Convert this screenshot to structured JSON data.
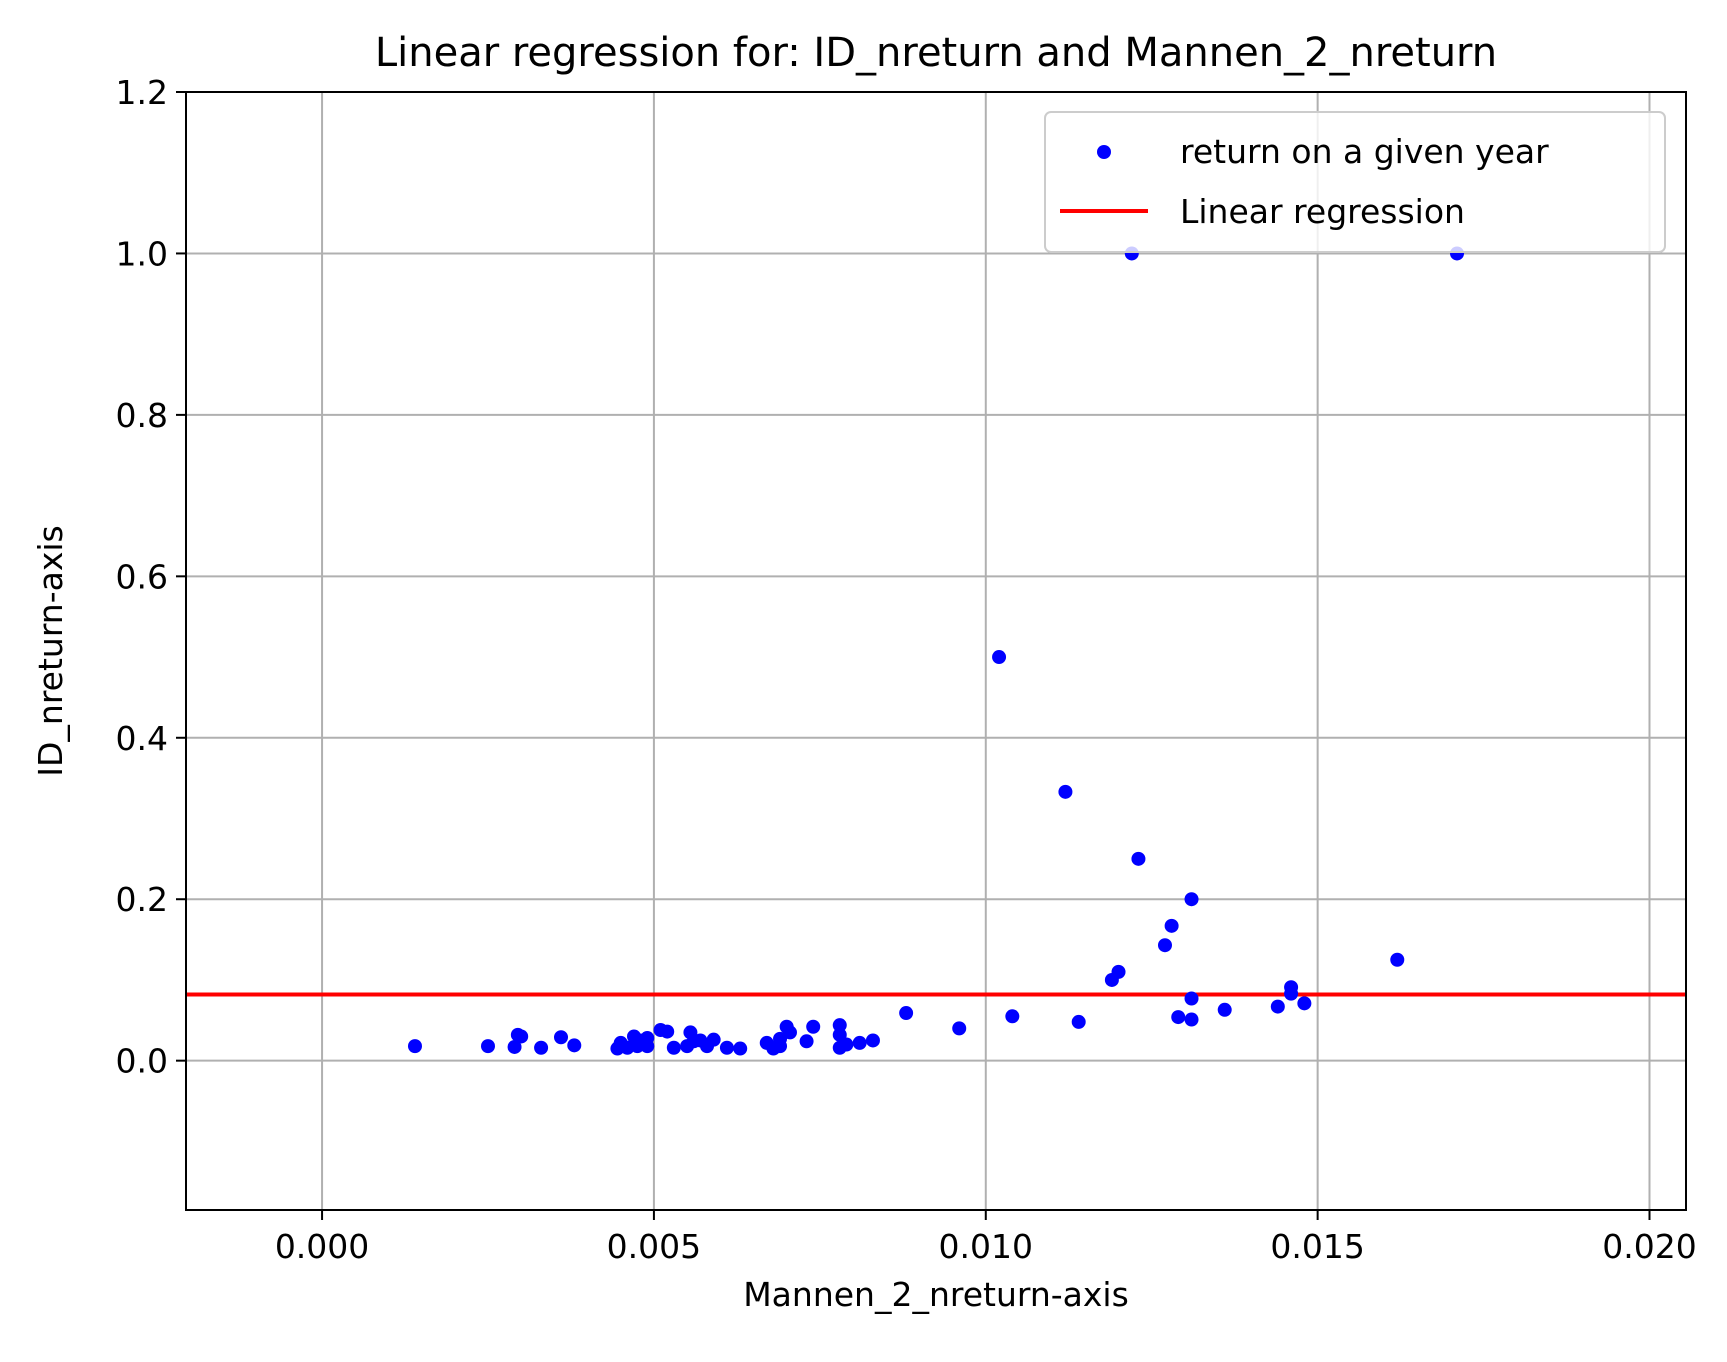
{
  "chart_data": {
    "type": "scatter",
    "title": "Linear regression for: ID_nreturn and Mannen_2_nreturn",
    "xlabel": "Mannen_2_nreturn-axis",
    "ylabel": "ID_nreturn-axis",
    "xlim": [
      -0.00205,
      0.02055
    ],
    "ylim": [
      -0.185,
      1.2
    ],
    "x_ticks": [
      {
        "value": 0.0,
        "label": "0.000"
      },
      {
        "value": 0.005,
        "label": "0.005"
      },
      {
        "value": 0.01,
        "label": "0.010"
      },
      {
        "value": 0.015,
        "label": "0.015"
      },
      {
        "value": 0.02,
        "label": "0.020"
      }
    ],
    "y_ticks": [
      {
        "value": 0.0,
        "label": "0.0"
      },
      {
        "value": 0.2,
        "label": "0.2"
      },
      {
        "value": 0.4,
        "label": "0.4"
      },
      {
        "value": 0.6,
        "label": "0.6"
      },
      {
        "value": 0.8,
        "label": "0.8"
      },
      {
        "value": 1.0,
        "label": "1.0"
      },
      {
        "value": 1.2,
        "label": "1.2"
      }
    ],
    "grid": true,
    "legend_position": "top-right",
    "series": [
      {
        "name": "return on a given year",
        "kind": "scatter",
        "color": "#0000ff",
        "points": [
          [
            0.0014,
            0.018
          ],
          [
            0.0025,
            0.018
          ],
          [
            0.0029,
            0.017
          ],
          [
            0.003,
            0.03
          ],
          [
            0.00295,
            0.032
          ],
          [
            0.0033,
            0.016
          ],
          [
            0.0036,
            0.029
          ],
          [
            0.0038,
            0.019
          ],
          [
            0.00445,
            0.015
          ],
          [
            0.0045,
            0.022
          ],
          [
            0.0046,
            0.016
          ],
          [
            0.0047,
            0.03
          ],
          [
            0.00475,
            0.018
          ],
          [
            0.0048,
            0.025
          ],
          [
            0.0049,
            0.018
          ],
          [
            0.0049,
            0.028
          ],
          [
            0.0051,
            0.038
          ],
          [
            0.0052,
            0.036
          ],
          [
            0.0053,
            0.016
          ],
          [
            0.0055,
            0.018
          ],
          [
            0.00555,
            0.035
          ],
          [
            0.0056,
            0.024
          ],
          [
            0.0057,
            0.025
          ],
          [
            0.0058,
            0.018
          ],
          [
            0.0059,
            0.026
          ],
          [
            0.0061,
            0.016
          ],
          [
            0.0063,
            0.015
          ],
          [
            0.0067,
            0.022
          ],
          [
            0.0068,
            0.015
          ],
          [
            0.0069,
            0.027
          ],
          [
            0.0069,
            0.018
          ],
          [
            0.007,
            0.042
          ],
          [
            0.00705,
            0.035
          ],
          [
            0.0073,
            0.024
          ],
          [
            0.0074,
            0.042
          ],
          [
            0.0078,
            0.044
          ],
          [
            0.0078,
            0.032
          ],
          [
            0.0078,
            0.016
          ],
          [
            0.0079,
            0.02
          ],
          [
            0.0081,
            0.022
          ],
          [
            0.0083,
            0.025
          ],
          [
            0.0088,
            0.059
          ],
          [
            0.0096,
            0.04
          ],
          [
            0.0102,
            0.5
          ],
          [
            0.0104,
            0.055
          ],
          [
            0.0112,
            0.333
          ],
          [
            0.0114,
            0.048
          ],
          [
            0.0119,
            0.1
          ],
          [
            0.012,
            0.11
          ],
          [
            0.0122,
            1.0
          ],
          [
            0.0123,
            0.25
          ],
          [
            0.0127,
            0.143
          ],
          [
            0.0128,
            0.167
          ],
          [
            0.0129,
            0.054
          ],
          [
            0.0131,
            0.077
          ],
          [
            0.0131,
            0.051
          ],
          [
            0.0131,
            0.2
          ],
          [
            0.0136,
            0.063
          ],
          [
            0.0144,
            0.067
          ],
          [
            0.0146,
            0.091
          ],
          [
            0.0146,
            0.083
          ],
          [
            0.0148,
            0.071
          ],
          [
            0.0162,
            0.125
          ],
          [
            0.0171,
            1.0
          ]
        ]
      },
      {
        "name": "Linear regression",
        "kind": "line",
        "color": "#ff0000",
        "slope": 0.0,
        "intercept": 0.082
      }
    ]
  }
}
